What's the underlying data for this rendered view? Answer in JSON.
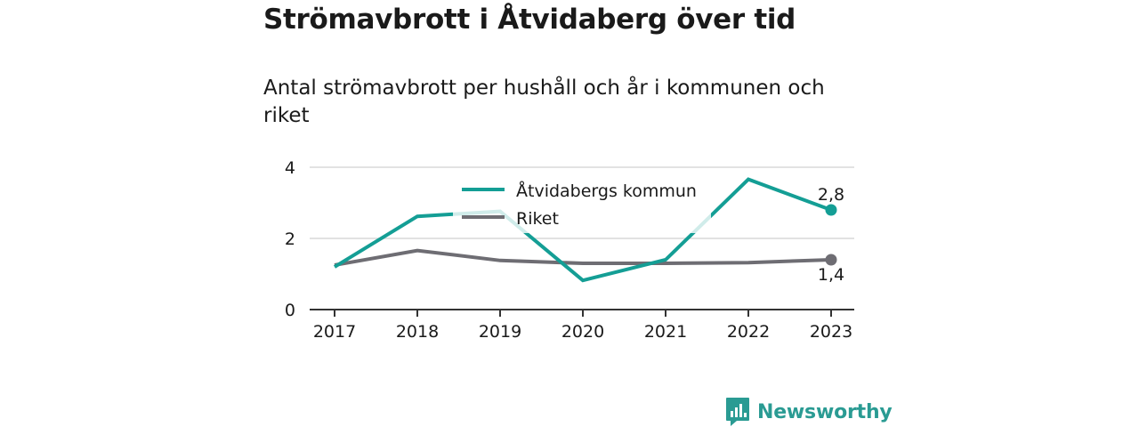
{
  "title": "Strömavbrott i Åtvidaberg över tid",
  "subtitle": "Antal strömavbrott per hushåll och år i kommunen och riket",
  "brand": {
    "name": "Newsworthy",
    "color": "#2a9b93",
    "icon": "bar-chart-icon"
  },
  "chart_data": {
    "type": "line",
    "title": "Strömavbrott i Åtvidaberg över tid",
    "subtitle": "Antal strömavbrott per hushåll och år i kommunen och riket",
    "x": [
      "2017",
      "2018",
      "2019",
      "2020",
      "2021",
      "2022",
      "2023"
    ],
    "ylim": [
      0,
      4
    ],
    "yticks": [
      0,
      2,
      4
    ],
    "grid": true,
    "legend": "top-center",
    "series": [
      {
        "name": "Åtvidabergs kommun",
        "color": "#149e95",
        "values": [
          1.2,
          2.62,
          2.76,
          0.82,
          1.4,
          3.66,
          2.8
        ],
        "end_label": "2,8"
      },
      {
        "name": "Riket",
        "color": "#6e6d73",
        "values": [
          1.25,
          1.66,
          1.38,
          1.3,
          1.3,
          1.32,
          1.4
        ],
        "end_label": "1,4"
      }
    ]
  }
}
